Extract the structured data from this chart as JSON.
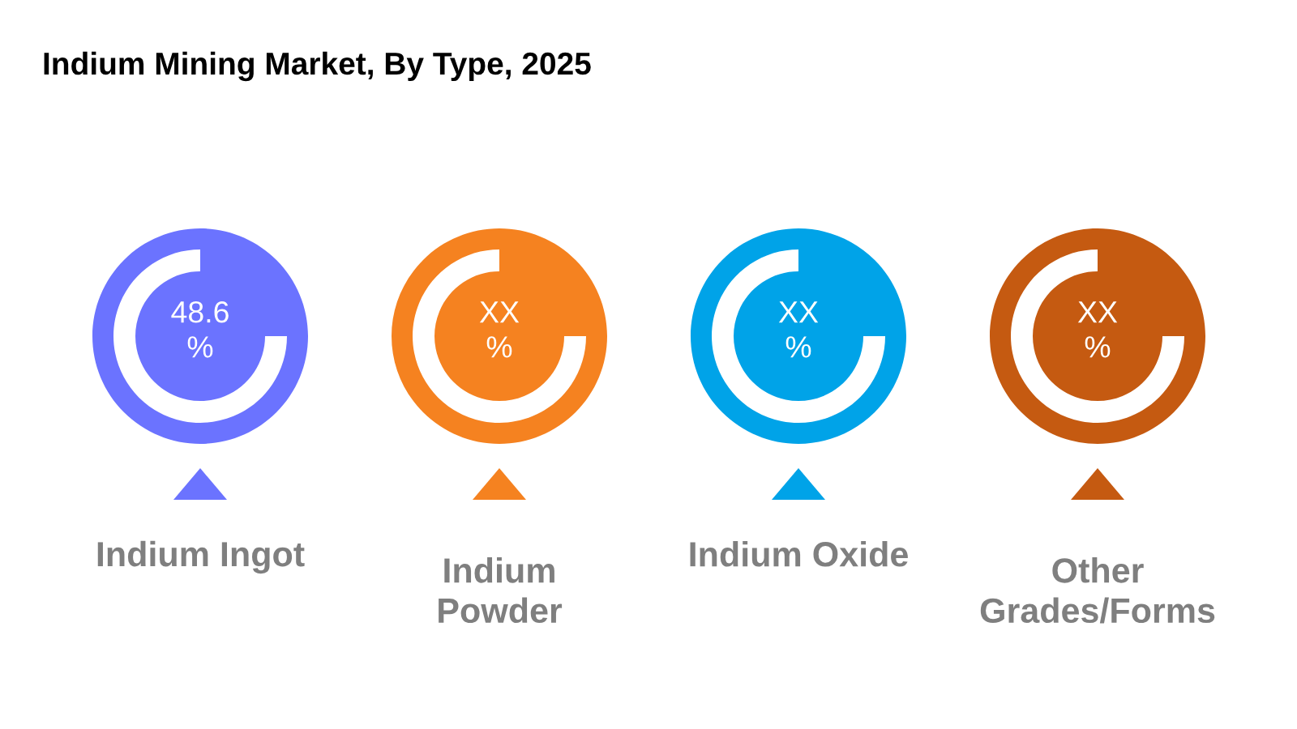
{
  "chart_data": {
    "type": "other",
    "title": "Indium Mining Market, By Type, 2025",
    "categories": [
      "Indium Ingot",
      "Indium Powder",
      "Indium Oxide",
      "Other Grades/Forms"
    ],
    "values": [
      48.6,
      null,
      null,
      null
    ],
    "value_labels": [
      "48.6 %",
      "XX %",
      "XX %",
      "XX %"
    ],
    "colors": [
      "#6b73ff",
      "#f58220",
      "#00a3e8",
      "#c55a11"
    ]
  }
}
